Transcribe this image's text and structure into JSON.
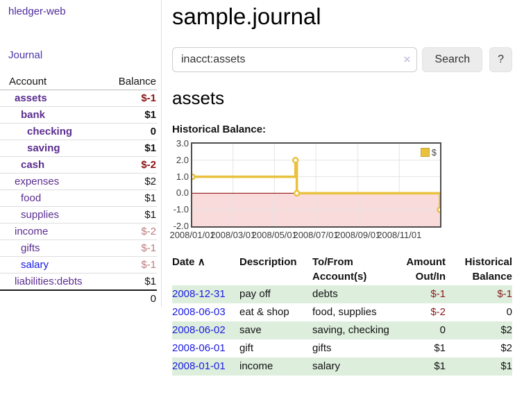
{
  "colors": {
    "link_purple": "#5b2d90",
    "link_blue": "#1317e6",
    "negative_strong": "#8b1212",
    "negative_muted": "#bb7b7b",
    "row_stripe_green": "#ddeedd",
    "chart_gold": "#e9c13d"
  },
  "sidebar": {
    "brand": "hledger-web",
    "journal_link": "Journal",
    "accounts": {
      "headers": [
        "Account",
        "Balance"
      ],
      "rows": [
        {
          "name": "assets",
          "balance": "$-1",
          "indent": 1,
          "bold": true,
          "neg": "strong",
          "link": "purple"
        },
        {
          "name": "bank",
          "balance": "$1",
          "indent": 2,
          "bold": true,
          "neg": "none",
          "link": "purple"
        },
        {
          "name": "checking",
          "balance": "0",
          "indent": 3,
          "bold": true,
          "neg": "none",
          "link": "purple"
        },
        {
          "name": "saving",
          "balance": "$1",
          "indent": 3,
          "bold": true,
          "neg": "none",
          "link": "purple"
        },
        {
          "name": "cash",
          "balance": "$-2",
          "indent": 2,
          "bold": true,
          "neg": "strong",
          "link": "purple"
        },
        {
          "name": "expenses",
          "balance": "$2",
          "indent": 1,
          "bold": false,
          "neg": "none",
          "link": "purple"
        },
        {
          "name": "food",
          "balance": "$1",
          "indent": 2,
          "bold": false,
          "neg": "none",
          "link": "purple"
        },
        {
          "name": "supplies",
          "balance": "$1",
          "indent": 2,
          "bold": false,
          "neg": "none",
          "link": "purple"
        },
        {
          "name": "income",
          "balance": "$-2",
          "indent": 1,
          "bold": false,
          "neg": "muted",
          "link": "purple"
        },
        {
          "name": "gifts",
          "balance": "$-1",
          "indent": 2,
          "bold": false,
          "neg": "muted",
          "link": "purple"
        },
        {
          "name": "salary",
          "balance": "$-1",
          "indent": 2,
          "bold": false,
          "neg": "muted",
          "link": "blue"
        },
        {
          "name": "liabilities:debts",
          "balance": "$1",
          "indent": 1,
          "bold": false,
          "neg": "none",
          "link": "purple"
        }
      ],
      "total": "0"
    }
  },
  "main": {
    "title": "sample.journal",
    "search": {
      "value": "inacct:assets",
      "clear_icon": "×",
      "search_button": "Search",
      "help_button": "?"
    },
    "account_heading": "assets",
    "chart_heading": "Historical Balance:"
  },
  "chart_data": {
    "type": "line",
    "step": true,
    "title": "Historical Balance",
    "series": [
      {
        "name": "$",
        "color": "#e9c13d",
        "point_fill": "#ffffff",
        "points": [
          [
            "2008/01/01",
            1
          ],
          [
            "2008/06/01",
            2
          ],
          [
            "2008/06/03",
            0
          ],
          [
            "2008/12/31",
            -1
          ]
        ]
      }
    ],
    "xlim": [
      "2008/01/01",
      "2008/12/31"
    ],
    "ylim": [
      -2,
      3
    ],
    "y_ticks": [
      "3.0",
      "2.0",
      "1.0",
      "0.0",
      "-1.0",
      "-2.0"
    ],
    "x_ticks": [
      "2008/01/01",
      "2008/03/01",
      "2008/05/01",
      "2008/07/01",
      "2008/09/01",
      "2008/11/01"
    ],
    "grid": true,
    "gridline_color": "#e4e4e4",
    "zero_line_color": "#8b0000",
    "negative_region_color": "#f9dbdb",
    "legend": {
      "label": "$",
      "position": "top-right"
    }
  },
  "register": {
    "headers": {
      "date": "Date",
      "description": "Description",
      "accounts": "To/From Account(s)",
      "amount": "Amount Out/In",
      "balance": "Historical Balance"
    },
    "sort_icon": "∧",
    "rows": [
      {
        "date": "2008-12-31",
        "description": "pay off",
        "accounts": "debts",
        "amount": "$-1",
        "balance": "$-1"
      },
      {
        "date": "2008-06-03",
        "description": "eat & shop",
        "accounts": "food, supplies",
        "amount": "$-2",
        "balance": "0"
      },
      {
        "date": "2008-06-02",
        "description": "save",
        "accounts": "saving, checking",
        "amount": "0",
        "balance": "$2"
      },
      {
        "date": "2008-06-01",
        "description": "gift",
        "accounts": "gifts",
        "amount": "$1",
        "balance": "$2"
      },
      {
        "date": "2008-01-01",
        "description": "income",
        "accounts": "salary",
        "amount": "$1",
        "balance": "$1"
      }
    ]
  }
}
